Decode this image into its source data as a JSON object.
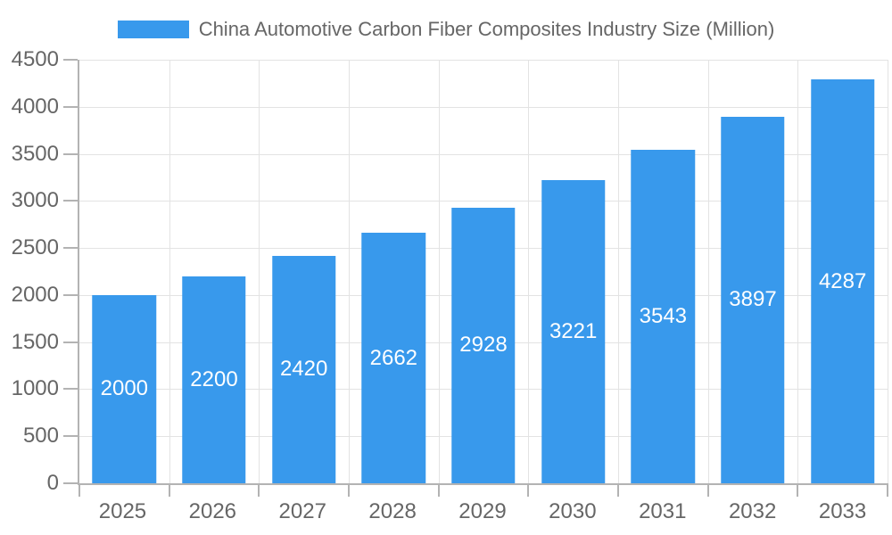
{
  "legend": {
    "label": "China Automotive Carbon Fiber Composites Industry Size (Million)"
  },
  "chart_data": {
    "type": "bar",
    "title": "China Automotive Carbon Fiber Composites Industry Size (Million)",
    "categories": [
      "2025",
      "2026",
      "2027",
      "2028",
      "2029",
      "2030",
      "2031",
      "2032",
      "2033"
    ],
    "values": [
      2000,
      2200,
      2420,
      2662,
      2928,
      3221,
      3543,
      3897,
      4287
    ],
    "xlabel": "",
    "ylabel": "",
    "ylim": [
      0,
      4500
    ],
    "ytick_step": 500,
    "ytick_labels": [
      "0",
      "500",
      "1000",
      "1500",
      "2000",
      "2500",
      "3000",
      "3500",
      "4000",
      "4500"
    ],
    "grid": true,
    "legend_position": "top",
    "colors": {
      "bar": "#3899ec",
      "bar_value_text": "#ffffff",
      "axis_text": "#666666",
      "grid_line": "#e3e3e3",
      "axis_line": "#b3b3b3",
      "background": "#ffffff"
    },
    "bar_width_fraction": 0.71
  }
}
